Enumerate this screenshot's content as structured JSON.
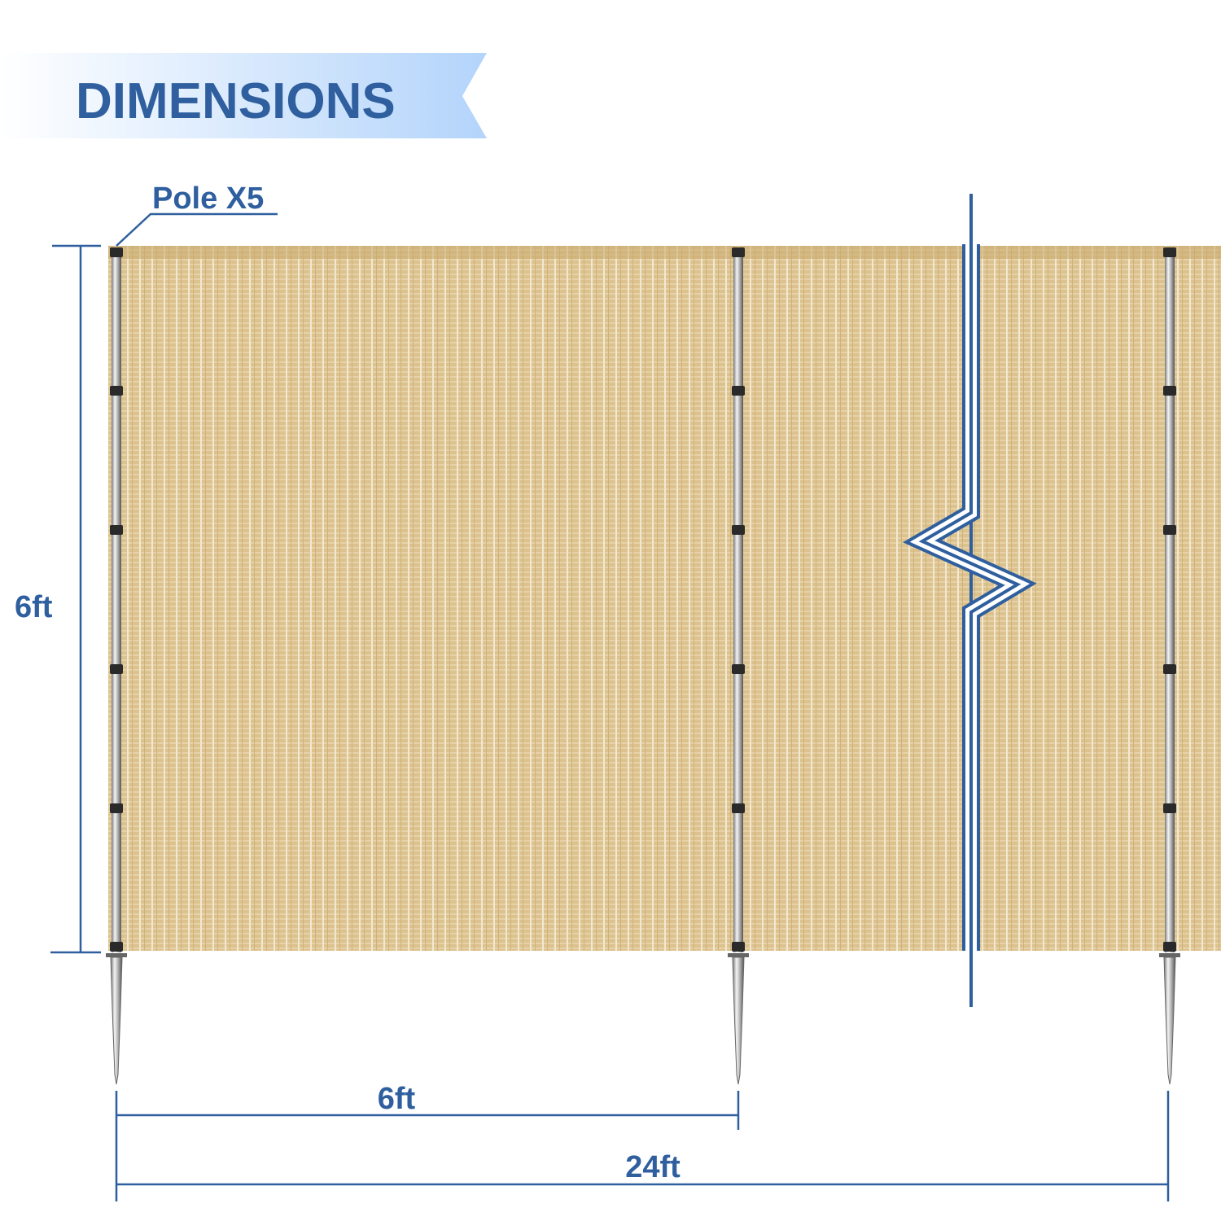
{
  "banner": {
    "title": "DIMENSIONS"
  },
  "callout": {
    "pole_label": "Pole X5"
  },
  "dimensions": {
    "height_label": "6ft",
    "pole_spacing_label": "6ft",
    "total_length_label": "24ft"
  },
  "colors": {
    "accent": "#2f5f9e",
    "banner_gradient_end": "#b3d4fb",
    "fabric": "#dcc28e",
    "pole": "#8a8a8a"
  }
}
